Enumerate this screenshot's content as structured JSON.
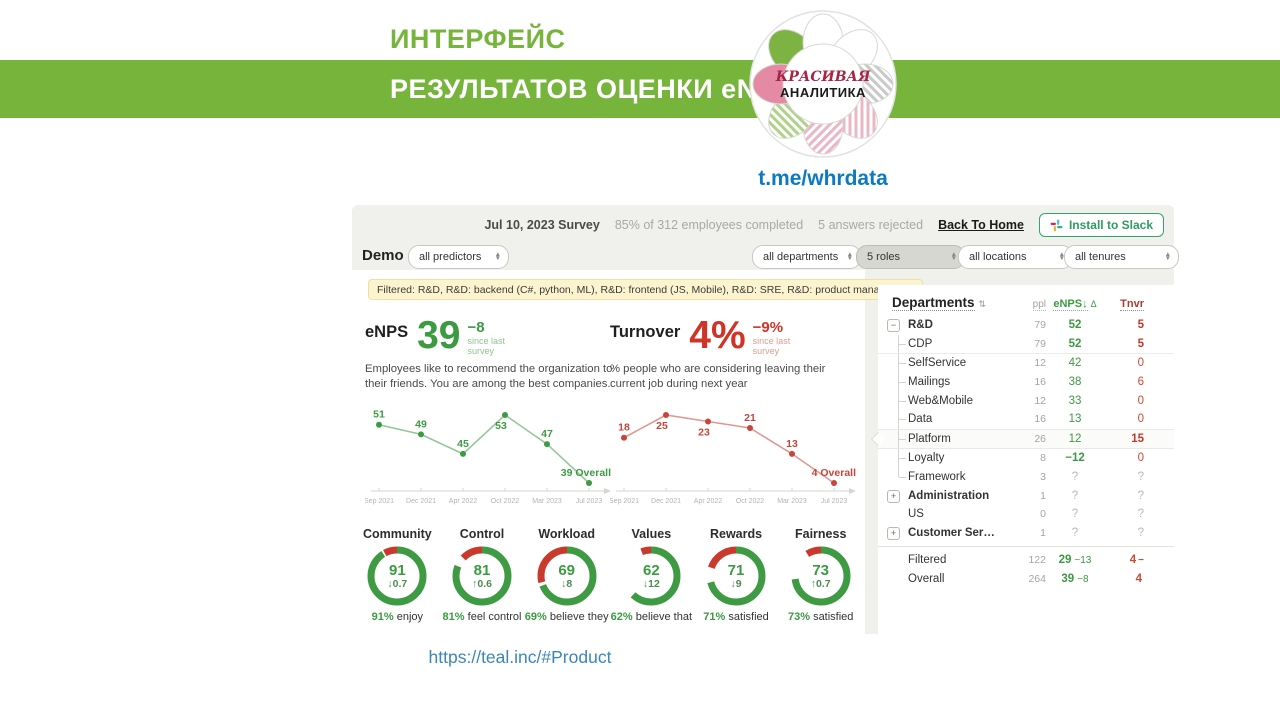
{
  "banner": {
    "line1": "ИНТЕРФЕЙС",
    "line2": "РЕЗУЛЬТАТОВ ОЦЕНКИ eNPS",
    "logo_line1": "КРАСИВАЯ",
    "logo_line2": "АНАЛИТИКА",
    "telegram": "t.me/whrdata",
    "band_green": "#76b43c",
    "link_blue": "#0b7ac1"
  },
  "footer_link": "https://teal.inc/#Product",
  "dashboard": {
    "survey_header": {
      "title": "Jul 10, 2023 Survey",
      "completed": "85% of 312 employees completed",
      "rejected": "5 answers rejected",
      "back_home": "Back To Home",
      "install_slack": "Install to Slack"
    },
    "controls": {
      "demo_label": "Demo",
      "predictors": "all predictors",
      "departments": "all departments",
      "roles": "5 roles",
      "locations": "all locations",
      "tenures": "all tenures"
    },
    "filter_chip": {
      "text": "Filtered: R&D, R&D: backend (C#, python, ML), R&D: frontend (JS, Mobile), R&D: SRE, R&D: product managers",
      "close": "×"
    }
  },
  "chart_data": [
    {
      "type": "line",
      "key": "enps_trend",
      "title": "eNPS",
      "value": "39",
      "delta": "−8",
      "delta_note": "since last survey",
      "description": "Employees like to recommend the organization to their friends. You are among the best companies.",
      "x": [
        "Sep 2021",
        "Dec 2021",
        "Apr 2022",
        "Oct 2022",
        "Mar 2023",
        "Jul 2023"
      ],
      "values": [
        51,
        49,
        45,
        53,
        47,
        39
      ],
      "overall_label": "Overall",
      "color": "#3c9a41",
      "ylim": [
        39,
        53
      ]
    },
    {
      "type": "line",
      "key": "turnover_trend",
      "title": "Turnover",
      "value": "4%",
      "delta": "−9%",
      "delta_note": "since last survey",
      "description": "% people who are considering leaving their current job during next year",
      "x": [
        "Sep 2021",
        "Dec 2021",
        "Apr 2022",
        "Oct 2022",
        "Mar 2023",
        "Jul 2023"
      ],
      "values": [
        18,
        25,
        23,
        21,
        13,
        4
      ],
      "overall_label": "Overall",
      "color": "#c8443a",
      "ylim": [
        4,
        25
      ]
    },
    {
      "type": "gauge",
      "green": "#3f9b43",
      "red": "#c93a2c",
      "items": [
        {
          "title": "Community",
          "value": "91",
          "delta": "↓0.7",
          "caption_pct": "91%",
          "caption": "enjoy",
          "ring": {
            "green": 91,
            "gap": 1,
            "red": 8
          }
        },
        {
          "title": "Control",
          "value": "81",
          "delta": "↑0.6",
          "caption_pct": "81%",
          "caption": "feel control",
          "ring": {
            "green": 81,
            "gap": 6,
            "red": 13
          }
        },
        {
          "title": "Workload",
          "value": "69",
          "delta": "↓8",
          "caption_pct": "69%",
          "caption": "believe they",
          "ring": {
            "green": 69,
            "gap": 2,
            "red": 29
          }
        },
        {
          "title": "Values",
          "value": "62",
          "delta": "↓12",
          "caption_pct": "62%",
          "caption": "believe that",
          "ring": {
            "green": 62,
            "gap": 32,
            "red": 6
          }
        },
        {
          "title": "Rewards",
          "value": "71",
          "delta": "↓9",
          "caption_pct": "71%",
          "caption": "satisfied",
          "ring": {
            "green": 71,
            "gap": 9,
            "red": 20
          }
        },
        {
          "title": "Fairness",
          "value": "73",
          "delta": "↑0.7",
          "caption_pct": "73%",
          "caption": "satisfied",
          "ring": {
            "green": 73,
            "gap": 18,
            "red": 9
          }
        }
      ]
    }
  ],
  "table": {
    "headers": {
      "name": "Departments",
      "sort": "⇅",
      "ppl": "ppl",
      "enps": "eNPS↓",
      "delta": "Δ",
      "tnvr": "Tnvr"
    },
    "rows": [
      {
        "name": "R&D",
        "bold": true,
        "expander": "−",
        "level": 0,
        "ppl": "79",
        "enps": "52",
        "enps_bold": true,
        "tnvr": "5",
        "tnvr_bold": true
      },
      {
        "name": "CDP",
        "level": 1,
        "divider": true,
        "ppl": "79",
        "enps": "52",
        "enps_bold": true,
        "tnvr": "5",
        "tnvr_bold": true
      },
      {
        "name": "SelfService",
        "level": 1,
        "ppl": "12",
        "enps": "42",
        "tnvr": "0"
      },
      {
        "name": "Mailings",
        "level": 1,
        "ppl": "16",
        "enps": "38",
        "tnvr": "6"
      },
      {
        "name": "Web&Mobile",
        "level": 1,
        "ppl": "12",
        "enps": "33",
        "tnvr": "0"
      },
      {
        "name": "Data",
        "level": 1,
        "ppl": "16",
        "enps": "13",
        "tnvr": "0"
      },
      {
        "name": "Platform",
        "selected": true,
        "level": 1,
        "ppl": "26",
        "enps": "12",
        "tnvr": "15",
        "tnvr_bold": true
      },
      {
        "name": "Loyalty",
        "level": 1,
        "ppl": "8",
        "enps": "−12",
        "enps_bold": true,
        "tnvr": "0"
      },
      {
        "name": "Framework",
        "level": 1,
        "last": true,
        "ppl": "3",
        "enps": "?",
        "tnvr": "?",
        "unknown": true
      },
      {
        "name": "Administration",
        "bold": true,
        "expander": "+",
        "level": 0,
        "ppl": "1",
        "enps": "?",
        "tnvr": "?",
        "unknown": true
      },
      {
        "name": "US",
        "level": 0,
        "ppl": "0",
        "enps": "?",
        "tnvr": "?",
        "unknown": true
      },
      {
        "name": "Customer Ser…",
        "bold": true,
        "expander": "+",
        "level": 0,
        "ppl": "1",
        "enps": "?",
        "tnvr": "?",
        "unknown": true
      }
    ],
    "summary": [
      {
        "name": "Filtered",
        "ppl": "122",
        "enps": "29",
        "enps_delta": "−13",
        "tnvr": "4",
        "tnvr_extra": "−"
      },
      {
        "name": "Overall",
        "ppl": "264",
        "enps": "39",
        "enps_delta": "−8",
        "tnvr": "4",
        "tnvr_extra": ""
      }
    ]
  }
}
